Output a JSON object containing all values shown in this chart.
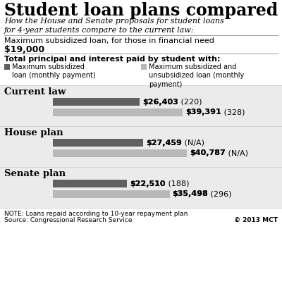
{
  "title": "Student loan plans compared",
  "subtitle": "How the House and Senate proposals for student loans\nfor 4-year students compare to the current law:",
  "max_loan_label": "Maximum subsidized loan, for those in financial need",
  "max_loan_value": "$19,000",
  "legend_dark_label": "Maximum subsidized\nloan (monthly payment)",
  "legend_light_label": "Maximum subsidized and\nunsubsidized loan (monthly\npayment)",
  "total_label": "Total principal and interest paid by student with:",
  "groups": [
    {
      "name": "Current law",
      "dark_value": 26403,
      "dark_bold": "$26,403",
      "dark_paren": " (220)",
      "light_value": 39391,
      "light_bold": "$39,391",
      "light_paren": " (328)"
    },
    {
      "name": "House plan",
      "dark_value": 27459,
      "dark_bold": "$27,459",
      "dark_paren": " (N/A)",
      "light_value": 40787,
      "light_bold": "$40,787",
      "light_paren": " (N/A)"
    },
    {
      "name": "Senate plan",
      "dark_value": 22510,
      "dark_bold": "$22,510",
      "dark_paren": " (188)",
      "light_value": 35498,
      "light_bold": "$35,498",
      "light_paren": " (296)"
    }
  ],
  "max_bar_value": 45000,
  "note1": "NOTE: Loans repaid according to 10-year repayment plan",
  "note2": "Source: Congressional Research Service",
  "copyright": "© 2013 MCT",
  "dark_color": "#606060",
  "light_color": "#b8b8b8",
  "bg_color": "#ebebeb",
  "white": "#ffffff",
  "title_fontsize": 17,
  "subtitle_fontsize": 8,
  "max_loan_fontsize": 8,
  "max_loan_val_fontsize": 9,
  "total_label_fontsize": 8,
  "legend_fontsize": 7,
  "group_name_fontsize": 9.5,
  "bar_label_fontsize": 8,
  "note_fontsize": 6.5
}
